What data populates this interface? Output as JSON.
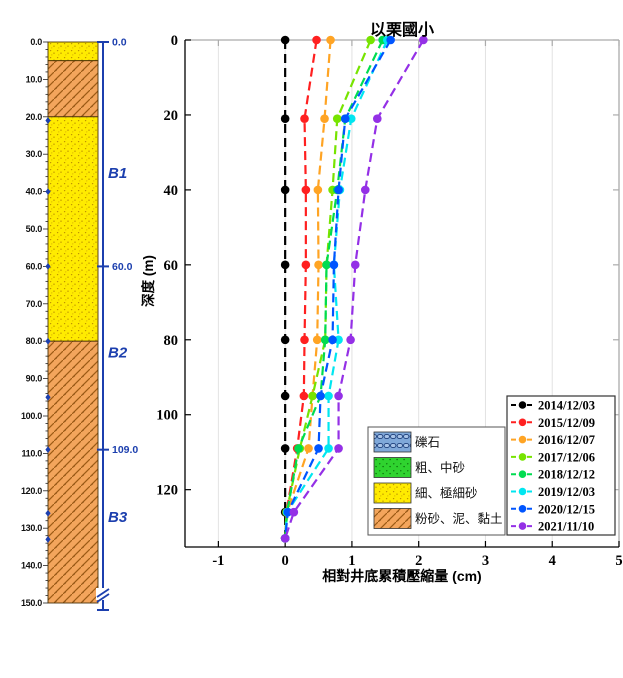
{
  "chart_data": {
    "type": "line",
    "title": "以栗國小",
    "xlabel": "相對井底累積壓縮量  (cm)",
    "ylabel": "深度 (m)",
    "xlim": [
      -1.5,
      5
    ],
    "ylim_depth_m": [
      0,
      135.3
    ],
    "x_ticks": [
      -1,
      0,
      1,
      2,
      3,
      4,
      5
    ],
    "y_ticks": [
      0,
      20,
      40,
      60,
      80,
      100,
      120
    ],
    "grid": "vertical-only",
    "legend_position": "lower-right",
    "depths_m": [
      0,
      21,
      40,
      60,
      80,
      95,
      109,
      126,
      133
    ],
    "series": [
      {
        "name": "2014/12/03",
        "color": "#000000",
        "values": [
          0.0,
          0.0,
          0.0,
          0.0,
          0.0,
          0.0,
          0.0,
          0.0,
          0.0
        ]
      },
      {
        "name": "2015/12/09",
        "color": "#FF2020",
        "values": [
          0.47,
          0.29,
          0.31,
          0.31,
          0.29,
          0.28,
          0.18,
          0.02,
          0.0
        ]
      },
      {
        "name": "2016/12/07",
        "color": "#FFA424",
        "values": [
          0.68,
          0.59,
          0.49,
          0.5,
          0.48,
          0.41,
          0.35,
          0.03,
          0.0
        ]
      },
      {
        "name": "2017/12/06",
        "color": "#77E400",
        "values": [
          1.28,
          0.78,
          0.71,
          0.62,
          0.6,
          0.41,
          0.22,
          0.02,
          0.0
        ]
      },
      {
        "name": "2018/12/12",
        "color": "#00DC50",
        "values": [
          1.46,
          0.9,
          0.78,
          0.62,
          0.6,
          0.53,
          0.2,
          0.03,
          0.0
        ]
      },
      {
        "name": "2019/12/03",
        "color": "#00E6F0",
        "values": [
          1.53,
          0.99,
          0.82,
          0.73,
          0.8,
          0.65,
          0.65,
          0.03,
          0.0
        ]
      },
      {
        "name": "2020/12/15",
        "color": "#0055FF",
        "values": [
          1.58,
          0.9,
          0.8,
          0.73,
          0.71,
          0.53,
          0.5,
          0.04,
          0.0
        ]
      },
      {
        "name": "2021/11/10",
        "color": "#9430E6",
        "values": [
          2.07,
          1.38,
          1.2,
          1.05,
          0.98,
          0.8,
          0.8,
          0.13,
          0.0
        ]
      }
    ]
  },
  "borehole_column": {
    "depth_range_m": [
      0,
      150
    ],
    "depth_tick_labels": [
      "0.0",
      "10.0",
      "20.0",
      "30.0",
      "40.0",
      "50.0",
      "60.0",
      "70.0",
      "80.0",
      "90.0",
      "100.0",
      "110.0",
      "120.0",
      "130.0",
      "140.0",
      "150.0"
    ],
    "layers": [
      {
        "from_m": 0,
        "to_m": 5,
        "material": "細、極細砂",
        "pattern": "fine-sand"
      },
      {
        "from_m": 5,
        "to_m": 20,
        "material": "粉砂、泥、黏土",
        "pattern": "silt-clay"
      },
      {
        "from_m": 20,
        "to_m": 80,
        "material": "細、極細砂",
        "pattern": "fine-sand"
      },
      {
        "from_m": 80,
        "to_m": 150,
        "material": "粉砂、泥、黏土",
        "pattern": "silt-clay"
      }
    ],
    "magnet_marker_depths_m": [
      21,
      40,
      60,
      80,
      95,
      109,
      126,
      133
    ],
    "well_annotation": {
      "color": "#1C3FAE",
      "tick_labels": [
        {
          "label": "0.0",
          "depth_m": 0
        },
        {
          "label": "60.0",
          "depth_m": 60
        },
        {
          "label": "109.0",
          "depth_m": 109
        }
      ],
      "segments": [
        {
          "label": "B1",
          "mid_depth_m": 35
        },
        {
          "label": "B2",
          "mid_depth_m": 83
        },
        {
          "label": "B3",
          "mid_depth_m": 127
        }
      ]
    }
  },
  "lithology_legend": {
    "items": [
      {
        "label": "礫石",
        "pattern": "gravel",
        "fill": "#7FA8D9"
      },
      {
        "label": "粗、中砂",
        "pattern": "coarse-sand",
        "fill": "#2FD32F"
      },
      {
        "label": "細、極細砂",
        "pattern": "fine-sand",
        "fill": "#FFEB00"
      },
      {
        "label": "粉砂、泥、黏土",
        "pattern": "silt-clay",
        "fill": "#F3A55C"
      }
    ]
  }
}
